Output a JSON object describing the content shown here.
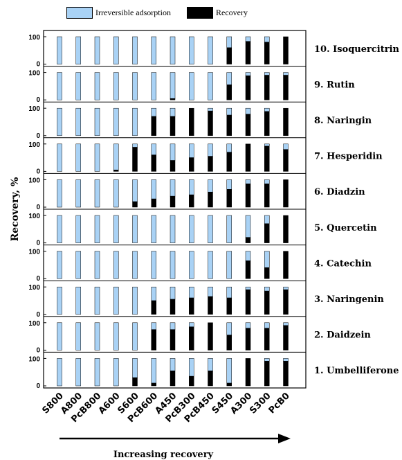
{
  "chart_data": {
    "type": "bar",
    "stacked": true,
    "categories": [
      "S800",
      "A800",
      "PcB800",
      "A600",
      "S600",
      "PcB600",
      "A450",
      "PcB300",
      "PcB450",
      "S450",
      "A300",
      "S300",
      "PcB0"
    ],
    "series": [
      {
        "name": "Irreversible adsorption",
        "color": "#a9d2f5"
      },
      {
        "name": "Recovery",
        "color": "#000000"
      }
    ],
    "ylabel": "Recovery, %",
    "xlabel": "Increasing recovery",
    "ytick_labels": [
      "0",
      "100"
    ],
    "ylim": [
      0,
      100
    ],
    "panels": [
      {
        "label": "10. Isoquercitrin",
        "recovery": [
          0,
          0,
          0,
          0,
          0,
          0,
          0,
          0,
          0,
          60,
          83,
          80,
          100
        ]
      },
      {
        "label": "9. Rutin",
        "recovery": [
          0,
          0,
          0,
          0,
          0,
          0,
          5,
          0,
          0,
          55,
          88,
          90,
          90
        ]
      },
      {
        "label": "8. Naringin",
        "recovery": [
          0,
          0,
          0,
          0,
          0,
          70,
          70,
          100,
          90,
          75,
          78,
          88,
          100
        ]
      },
      {
        "label": "7. Hesperidin",
        "recovery": [
          0,
          0,
          0,
          5,
          88,
          60,
          40,
          50,
          55,
          70,
          100,
          92,
          80
        ]
      },
      {
        "label": "6. Diadzin",
        "recovery": [
          0,
          0,
          0,
          0,
          20,
          30,
          40,
          45,
          55,
          65,
          85,
          85,
          100
        ]
      },
      {
        "label": "5. Quercetin",
        "recovery": [
          0,
          0,
          0,
          0,
          0,
          0,
          0,
          0,
          0,
          0,
          20,
          70,
          100
        ]
      },
      {
        "label": "4. Catechin",
        "recovery": [
          0,
          0,
          0,
          0,
          0,
          0,
          0,
          0,
          0,
          0,
          65,
          40,
          100
        ]
      },
      {
        "label": "3. Naringenin",
        "recovery": [
          0,
          0,
          0,
          0,
          0,
          50,
          55,
          60,
          65,
          60,
          90,
          85,
          90
        ]
      },
      {
        "label": "2. Daidzein",
        "recovery": [
          0,
          0,
          0,
          0,
          0,
          75,
          75,
          85,
          100,
          55,
          80,
          80,
          90
        ]
      },
      {
        "label": "1. Umbelliferone",
        "recovery": [
          0,
          0,
          0,
          0,
          30,
          10,
          55,
          35,
          55,
          10,
          100,
          90,
          90
        ]
      }
    ]
  }
}
